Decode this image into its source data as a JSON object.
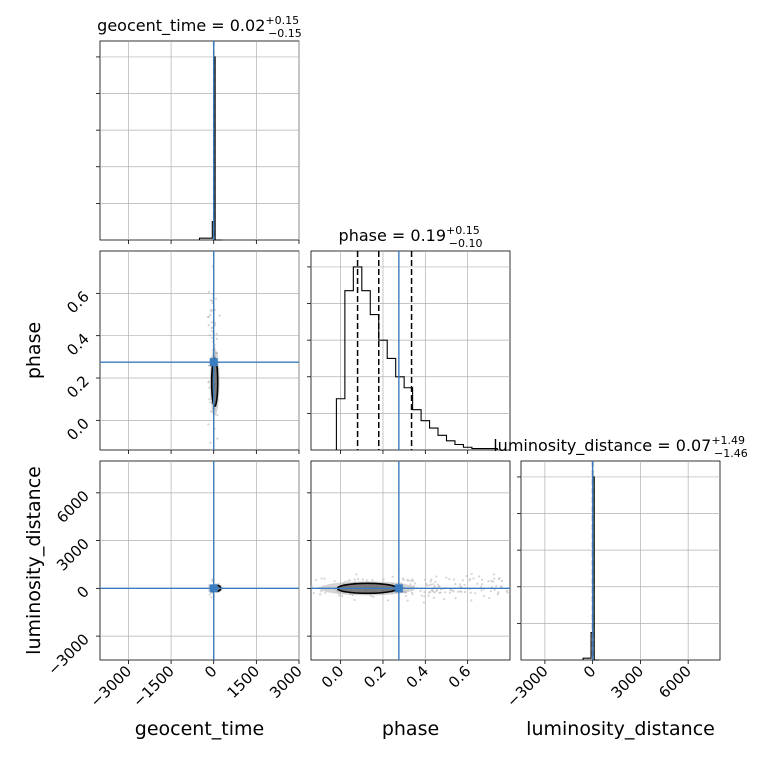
{
  "chart_data": {
    "type": "corner",
    "parameters": [
      {
        "name": "geocent_time",
        "xlabel": "geocent_time",
        "title": {
          "prefix": "geocent_time = ",
          "median": "0.02",
          "plus": "+0.15",
          "minus": "−0.15"
        },
        "xlim": [
          -4000,
          3000
        ],
        "ticks": [
          -3000,
          -1500,
          0,
          1500,
          3000
        ],
        "ticklabels": [
          "−3000",
          "−1500",
          "0",
          "1500",
          "3000"
        ],
        "truth": 0
      },
      {
        "name": "phase",
        "xlabel": "phase",
        "ylabel": "phase",
        "title": {
          "prefix": "phase = ",
          "median": "0.19",
          "plus": "+0.15",
          "minus": "−0.10"
        },
        "xlim": [
          -0.14,
          0.8
        ],
        "ticks": [
          0.0,
          0.2,
          0.4,
          0.6
        ],
        "ticklabels": [
          "0.0",
          "0.2",
          "0.4",
          "0.6"
        ],
        "truth": 0.275,
        "quantiles": [
          0.08,
          0.18,
          0.335
        ]
      },
      {
        "name": "luminosity_distance",
        "xlabel": "luminosity_distance",
        "ylabel": "luminosity_distance",
        "title": {
          "prefix": "luminosity_distance = ",
          "median": "0.07",
          "plus": "+1.49",
          "minus": "−1.46"
        },
        "xlim": [
          -4500,
          8000
        ],
        "ticks": [
          -3000,
          0,
          3000,
          6000
        ],
        "ticklabels": [
          "−3000",
          "0",
          "3000",
          "6000"
        ],
        "truth": 0
      }
    ],
    "histograms": {
      "geocent_time": {
        "bin_edges": [
          -500,
          -50,
          0,
          50,
          300
        ],
        "heights": [
          0.01,
          0.1,
          1.0,
          0
        ]
      },
      "phase": {
        "bin_edges": [
          -0.02,
          0.02,
          0.06,
          0.1,
          0.14,
          0.18,
          0.22,
          0.26,
          0.3,
          0.34,
          0.38,
          0.42,
          0.46,
          0.5,
          0.54,
          0.58,
          0.62,
          0.66,
          0.7,
          0.74
        ],
        "heights": [
          0.28,
          0.87,
          1.0,
          0.87,
          0.74,
          0.6,
          0.5,
          0.4,
          0.34,
          0.22,
          0.16,
          0.12,
          0.08,
          0.05,
          0.03,
          0.015,
          0.008,
          0.008,
          0.008
        ]
      },
      "luminosity_distance": {
        "bin_edges": [
          -600,
          -100,
          0,
          100,
          400
        ],
        "heights": [
          0.01,
          0.15,
          1.0,
          0
        ]
      }
    },
    "color_truth": "#3b7bbf",
    "color_hist": "#000000",
    "grid": true
  }
}
